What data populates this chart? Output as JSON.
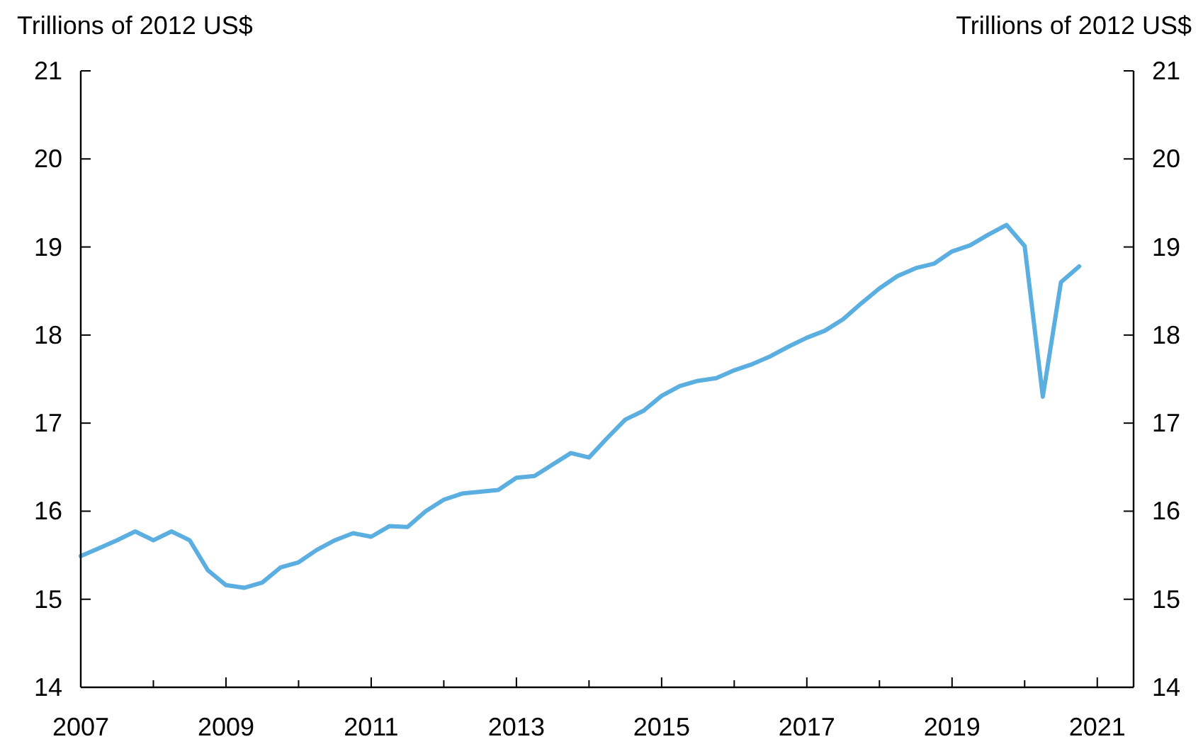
{
  "chart_data": {
    "type": "line",
    "ylabel": "Trillions of 2012 US$",
    "y2label": "Trillions of 2012 US$",
    "x": [
      2007,
      2007.25,
      2007.5,
      2007.75,
      2008,
      2008.25,
      2008.5,
      2008.75,
      2009,
      2009.25,
      2009.5,
      2009.75,
      2010,
      2010.25,
      2010.5,
      2010.75,
      2011,
      2011.25,
      2011.5,
      2011.75,
      2012,
      2012.25,
      2012.5,
      2012.75,
      2013,
      2013.25,
      2013.5,
      2013.75,
      2014,
      2014.25,
      2014.5,
      2014.75,
      2015,
      2015.25,
      2015.5,
      2015.75,
      2016,
      2016.25,
      2016.5,
      2016.75,
      2017,
      2017.25,
      2017.5,
      2017.75,
      2018,
      2018.25,
      2018.5,
      2018.75,
      2019,
      2019.25,
      2019.5,
      2019.75,
      2020,
      2020.25,
      2020.5,
      2020.75
    ],
    "series": [
      {
        "color": "#5aaee0",
        "values": [
          15.49,
          15.58,
          15.67,
          15.77,
          15.67,
          15.77,
          15.67,
          15.33,
          15.16,
          15.13,
          15.19,
          15.36,
          15.42,
          15.56,
          15.67,
          15.75,
          15.71,
          15.83,
          15.82,
          16.0,
          16.13,
          16.2,
          16.22,
          16.24,
          16.38,
          16.4,
          16.53,
          16.66,
          16.61,
          16.83,
          17.04,
          17.14,
          17.31,
          17.42,
          17.48,
          17.51,
          17.6,
          17.67,
          17.76,
          17.87,
          17.97,
          18.05,
          18.18,
          18.36,
          18.53,
          18.67,
          18.76,
          18.81,
          18.95,
          19.02,
          19.14,
          19.25,
          19.01,
          17.3,
          18.6,
          18.78
        ]
      }
    ],
    "xlim": [
      2007,
      2021.5
    ],
    "xticks": [
      2007,
      {
        "value": 2008,
        "label": null
      },
      2009,
      {
        "value": 2010,
        "label": null
      },
      2011,
      {
        "value": 2012,
        "label": null
      },
      2013,
      {
        "value": 2014,
        "label": null
      },
      2015,
      {
        "value": 2016,
        "label": null
      },
      2017,
      {
        "value": 2018,
        "label": null
      },
      2019,
      {
        "value": 2020,
        "label": null
      },
      2021
    ],
    "ylim": [
      14,
      21
    ],
    "yticks": [
      14,
      15,
      16,
      17,
      18,
      19,
      20,
      21
    ],
    "y2lim": [
      14,
      21
    ],
    "y2ticks": [
      14,
      15,
      16,
      17,
      18,
      19,
      20,
      21
    ],
    "line_style": "solid"
  }
}
